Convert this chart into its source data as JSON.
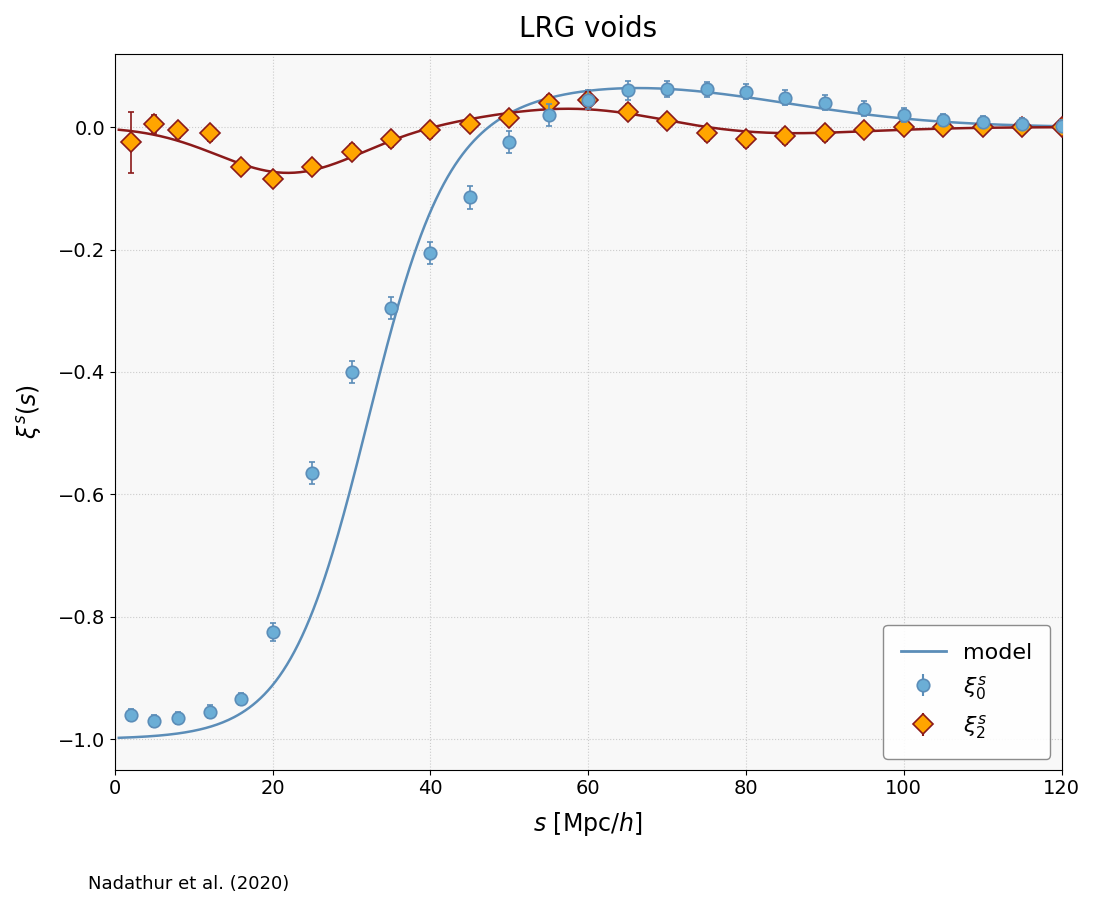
{
  "title": "LRG voids",
  "xlabel": "$s$ [Mpc/$h$]",
  "ylabel": "$\\xi^s(s)$",
  "xlim": [
    0,
    120
  ],
  "ylim": [
    -1.05,
    0.12
  ],
  "caption": "Nadathur et al. (2020)",
  "model_color": "#5b8db8",
  "model_color2": "#8b1a1a",
  "xi0_color": "#6baed6",
  "xi0_ecolor": "#5b8db8",
  "xi2_color": "#FFA500",
  "xi2_ecolor": "#8b1a1a",
  "xi0_x": [
    2,
    5,
    8,
    12,
    16,
    20,
    25,
    30,
    35,
    40,
    45,
    50,
    55,
    60,
    65,
    70,
    75,
    80,
    85,
    90,
    95,
    100,
    105,
    110,
    115,
    120
  ],
  "xi0_y": [
    -0.96,
    -0.97,
    -0.965,
    -0.955,
    -0.935,
    -0.825,
    -0.565,
    -0.4,
    -0.295,
    -0.205,
    -0.115,
    -0.025,
    0.02,
    0.045,
    0.06,
    0.063,
    0.062,
    0.058,
    0.048,
    0.04,
    0.03,
    0.02,
    0.012,
    0.008,
    0.005,
    0.002
  ],
  "xi0_err": [
    0.01,
    0.01,
    0.01,
    0.01,
    0.01,
    0.015,
    0.018,
    0.018,
    0.018,
    0.018,
    0.018,
    0.018,
    0.018,
    0.015,
    0.015,
    0.013,
    0.012,
    0.012,
    0.012,
    0.012,
    0.012,
    0.012,
    0.01,
    0.01,
    0.01,
    0.01
  ],
  "xi2_x": [
    2,
    5,
    8,
    12,
    16,
    20,
    25,
    30,
    35,
    40,
    45,
    50,
    55,
    60,
    65,
    70,
    75,
    80,
    85,
    90,
    95,
    100,
    105,
    110,
    115,
    120
  ],
  "xi2_y": [
    -0.025,
    0.005,
    -0.005,
    -0.01,
    -0.065,
    -0.085,
    -0.065,
    -0.04,
    -0.02,
    -0.005,
    0.005,
    0.015,
    0.04,
    0.045,
    0.025,
    0.01,
    -0.01,
    -0.02,
    -0.015,
    -0.01,
    -0.005,
    0.0,
    0.0,
    0.0,
    0.0,
    0.0
  ],
  "xi2_err": [
    0.05,
    0.015,
    0.012,
    0.012,
    0.012,
    0.012,
    0.012,
    0.012,
    0.012,
    0.012,
    0.012,
    0.012,
    0.012,
    0.012,
    0.012,
    0.012,
    0.012,
    0.012,
    0.012,
    0.012,
    0.01,
    0.01,
    0.01,
    0.01,
    0.01,
    0.01
  ],
  "background_color": "#f8f8f8",
  "grid_color": "#cccccc"
}
